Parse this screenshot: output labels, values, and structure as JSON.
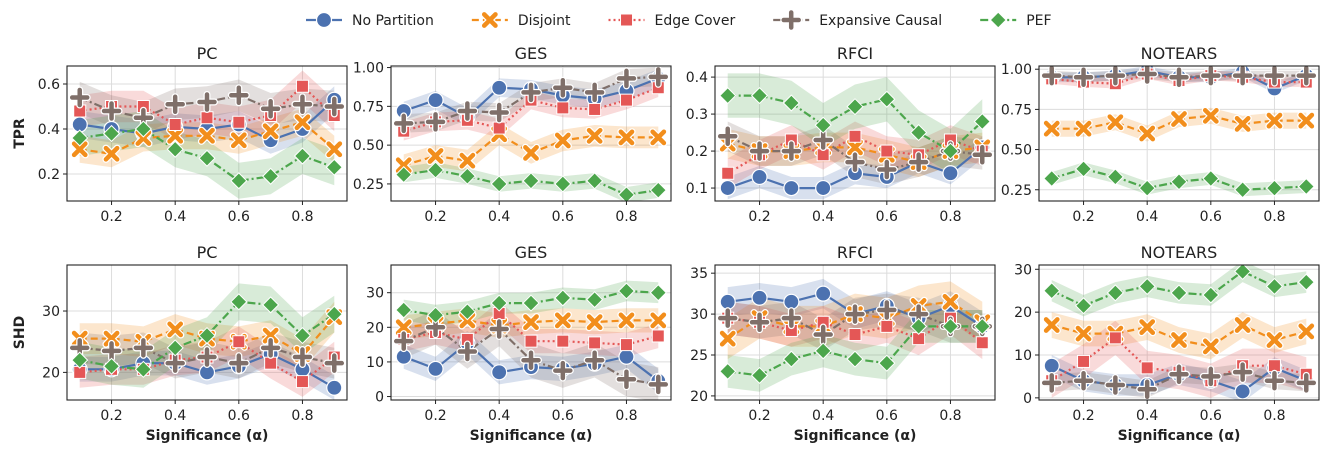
{
  "legend": [
    {
      "name": "No Partition",
      "color": "#4C72B0",
      "marker": "circle",
      "dash": ""
    },
    {
      "name": "Disjoint",
      "color": "#F28E1C",
      "marker": "x",
      "dash": "7,4"
    },
    {
      "name": "Edge Cover",
      "color": "#E45756",
      "marker": "square",
      "dash": "2,3"
    },
    {
      "name": "Expansive Causal",
      "color": "#7F6F69",
      "marker": "plus",
      "dash": "8,3,2,3"
    },
    {
      "name": "PEF",
      "color": "#4CA64C",
      "marker": "diamond",
      "dash": "8,3,2,3"
    }
  ],
  "x_label_prefix": "Significance (",
  "x_label_symbol": "α",
  "x_label_suffix": ")",
  "row_labels": [
    "TPR",
    "SHD"
  ],
  "chart_data": [
    {
      "type": "line",
      "row": 0,
      "col": 0,
      "title": "PC",
      "ylabel": "TPR",
      "xlabel": "",
      "xlim": [
        0.06,
        0.94
      ],
      "ylim": [
        0.08,
        0.68
      ],
      "yticks": [
        0.2,
        0.4,
        0.6
      ],
      "yticklabels": [
        "0.2",
        "0.4",
        "0.6"
      ],
      "xticks": [
        0.2,
        0.4,
        0.6,
        0.8
      ],
      "xticklabels": [
        "0.2",
        "0.4",
        "0.6",
        "0.8"
      ],
      "x": [
        0.1,
        0.2,
        0.3,
        0.4,
        0.5,
        0.6,
        0.7,
        0.8,
        0.9
      ],
      "series": [
        {
          "name": "No Partition",
          "values": [
            0.42,
            0.4,
            0.38,
            0.41,
            0.4,
            0.42,
            0.35,
            0.4,
            0.53
          ],
          "band": 0.06
        },
        {
          "name": "Disjoint",
          "values": [
            0.31,
            0.29,
            0.36,
            0.37,
            0.37,
            0.35,
            0.39,
            0.43,
            0.31
          ],
          "band": 0.06
        },
        {
          "name": "Edge Cover",
          "values": [
            0.48,
            0.5,
            0.5,
            0.42,
            0.45,
            0.43,
            0.46,
            0.59,
            0.46
          ],
          "band": 0.07
        },
        {
          "name": "Expansive Causal",
          "values": [
            0.54,
            0.48,
            0.45,
            0.51,
            0.52,
            0.55,
            0.49,
            0.51,
            0.5
          ],
          "band": 0.07
        },
        {
          "name": "PEF",
          "values": [
            0.36,
            0.38,
            0.4,
            0.31,
            0.27,
            0.17,
            0.19,
            0.28,
            0.23
          ],
          "band": 0.08
        }
      ]
    },
    {
      "type": "line",
      "row": 0,
      "col": 1,
      "title": "GES",
      "ylabel": "",
      "xlabel": "",
      "xlim": [
        0.06,
        0.94
      ],
      "ylim": [
        0.14,
        1.01
      ],
      "yticks": [
        0.25,
        0.5,
        0.75,
        1.0
      ],
      "yticklabels": [
        "0.25",
        "0.50",
        "0.75",
        "1.00"
      ],
      "xticks": [
        0.2,
        0.4,
        0.6,
        0.8
      ],
      "xticklabels": [
        "0.2",
        "0.4",
        "0.6",
        "0.8"
      ],
      "x": [
        0.1,
        0.2,
        0.3,
        0.4,
        0.5,
        0.6,
        0.7,
        0.8,
        0.9
      ],
      "series": [
        {
          "name": "No Partition",
          "values": [
            0.72,
            0.79,
            0.68,
            0.87,
            0.86,
            0.82,
            0.8,
            0.85,
            0.93
          ],
          "band": 0.06
        },
        {
          "name": "Disjoint",
          "values": [
            0.37,
            0.43,
            0.4,
            0.57,
            0.45,
            0.53,
            0.56,
            0.55,
            0.55
          ],
          "band": 0.07
        },
        {
          "name": "Edge Cover",
          "values": [
            0.59,
            0.65,
            0.66,
            0.61,
            0.79,
            0.74,
            0.73,
            0.79,
            0.87
          ],
          "band": 0.06
        },
        {
          "name": "Expansive Causal",
          "values": [
            0.64,
            0.65,
            0.72,
            0.71,
            0.84,
            0.87,
            0.84,
            0.93,
            0.94
          ],
          "band": 0.06
        },
        {
          "name": "PEF",
          "values": [
            0.31,
            0.34,
            0.3,
            0.25,
            0.27,
            0.25,
            0.27,
            0.18,
            0.21
          ],
          "band": 0.05
        }
      ]
    },
    {
      "type": "line",
      "row": 0,
      "col": 2,
      "title": "RFCI",
      "ylabel": "",
      "xlabel": "",
      "xlim": [
        0.06,
        0.94
      ],
      "ylim": [
        0.065,
        0.43
      ],
      "yticks": [
        0.1,
        0.2,
        0.3,
        0.4
      ],
      "yticklabels": [
        "0.1",
        "0.2",
        "0.3",
        "0.4"
      ],
      "xticks": [
        0.2,
        0.4,
        0.6,
        0.8
      ],
      "xticklabels": [
        "0.2",
        "0.4",
        "0.6",
        "0.8"
      ],
      "x": [
        0.1,
        0.2,
        0.3,
        0.4,
        0.5,
        0.6,
        0.7,
        0.8,
        0.9
      ],
      "series": [
        {
          "name": "No Partition",
          "values": [
            0.1,
            0.13,
            0.1,
            0.1,
            0.14,
            0.13,
            0.17,
            0.14,
            0.21
          ],
          "band": 0.03
        },
        {
          "name": "Disjoint",
          "values": [
            0.22,
            0.2,
            0.2,
            0.21,
            0.21,
            0.19,
            0.17,
            0.2,
            0.21
          ],
          "band": 0.04
        },
        {
          "name": "Edge Cover",
          "values": [
            0.14,
            0.19,
            0.23,
            0.19,
            0.24,
            0.2,
            0.19,
            0.23,
            0.2
          ],
          "band": 0.04
        },
        {
          "name": "Expansive Causal",
          "values": [
            0.24,
            0.2,
            0.2,
            0.23,
            0.17,
            0.15,
            0.17,
            0.2,
            0.19
          ],
          "band": 0.04
        },
        {
          "name": "PEF",
          "values": [
            0.35,
            0.35,
            0.33,
            0.27,
            0.32,
            0.34,
            0.25,
            0.2,
            0.28
          ],
          "band": 0.06
        }
      ]
    },
    {
      "type": "line",
      "row": 0,
      "col": 3,
      "title": "NOTEARS",
      "ylabel": "",
      "xlabel": "",
      "xlim": [
        0.06,
        0.94
      ],
      "ylim": [
        0.18,
        1.02
      ],
      "yticks": [
        0.25,
        0.5,
        0.75,
        1.0
      ],
      "yticklabels": [
        "0.25",
        "0.50",
        "0.75",
        "1.00"
      ],
      "xticks": [
        0.2,
        0.4,
        0.6,
        0.8
      ],
      "xticklabels": [
        "0.2",
        "0.4",
        "0.6",
        "0.8"
      ],
      "x": [
        0.1,
        0.2,
        0.3,
        0.4,
        0.5,
        0.6,
        0.7,
        0.8,
        0.9
      ],
      "series": [
        {
          "name": "No Partition",
          "values": [
            0.95,
            0.95,
            0.96,
            0.99,
            0.95,
            0.95,
            0.98,
            0.88,
            0.96
          ],
          "band": 0.03
        },
        {
          "name": "Disjoint",
          "values": [
            0.63,
            0.63,
            0.67,
            0.6,
            0.69,
            0.71,
            0.66,
            0.68,
            0.68
          ],
          "band": 0.05
        },
        {
          "name": "Edge Cover",
          "values": [
            0.94,
            0.92,
            0.91,
            0.97,
            0.93,
            0.96,
            0.95,
            0.92,
            0.92
          ],
          "band": 0.03
        },
        {
          "name": "Expansive Causal",
          "values": [
            0.96,
            0.95,
            0.96,
            0.97,
            0.95,
            0.96,
            0.96,
            0.96,
            0.96
          ],
          "band": 0.03
        },
        {
          "name": "PEF",
          "values": [
            0.32,
            0.38,
            0.33,
            0.26,
            0.3,
            0.32,
            0.25,
            0.26,
            0.27
          ],
          "band": 0.04
        }
      ]
    },
    {
      "type": "line",
      "row": 1,
      "col": 0,
      "title": "PC",
      "ylabel": "SHD",
      "xlabel": "Significance (α)",
      "xlim": [
        0.06,
        0.94
      ],
      "ylim": [
        15.5,
        37.5
      ],
      "yticks": [
        20,
        30
      ],
      "yticklabels": [
        "20",
        "30"
      ],
      "xticks": [
        0.2,
        0.4,
        0.6,
        0.8
      ],
      "xticklabels": [
        "0.2",
        "0.4",
        "0.6",
        "0.8"
      ],
      "x": [
        0.1,
        0.2,
        0.3,
        0.4,
        0.5,
        0.6,
        0.7,
        0.8,
        0.9
      ],
      "series": [
        {
          "name": "No Partition",
          "values": [
            20.5,
            20.5,
            21.5,
            21.5,
            20.0,
            21.0,
            23.0,
            20.5,
            17.5
          ],
          "band": 2.0
        },
        {
          "name": "Disjoint",
          "values": [
            25.5,
            25.5,
            25.0,
            27.0,
            25.5,
            25.0,
            26.0,
            23.0,
            29.0
          ],
          "band": 2.5
        },
        {
          "name": "Edge Cover",
          "values": [
            20.0,
            20.5,
            20.5,
            22.0,
            22.5,
            25.0,
            21.5,
            18.5,
            22.5
          ],
          "band": 2.5
        },
        {
          "name": "Expansive Causal",
          "values": [
            24.0,
            23.5,
            24.0,
            21.5,
            22.5,
            21.5,
            24.0,
            22.5,
            21.5
          ],
          "band": 2.5
        },
        {
          "name": "PEF",
          "values": [
            22.0,
            21.0,
            20.5,
            24.0,
            26.0,
            31.5,
            31.0,
            26.0,
            29.5
          ],
          "band": 3.0
        }
      ]
    },
    {
      "type": "line",
      "row": 1,
      "col": 1,
      "title": "GES",
      "ylabel": "",
      "xlabel": "Significance (α)",
      "xlim": [
        0.06,
        0.94
      ],
      "ylim": [
        -1,
        38
      ],
      "yticks": [
        0,
        10,
        20,
        30
      ],
      "yticklabels": [
        "0",
        "10",
        "20",
        "30"
      ],
      "xticks": [
        0.2,
        0.4,
        0.6,
        0.8
      ],
      "xticklabels": [
        "0.2",
        "0.4",
        "0.6",
        "0.8"
      ],
      "x": [
        0.1,
        0.2,
        0.3,
        0.4,
        0.5,
        0.6,
        0.7,
        0.8,
        0.9
      ],
      "series": [
        {
          "name": "No Partition",
          "values": [
            11.5,
            8.0,
            15.5,
            7.0,
            8.5,
            8.0,
            9.5,
            11.5,
            4.5
          ],
          "band": 3.5
        },
        {
          "name": "Disjoint",
          "values": [
            20.0,
            21.0,
            22.0,
            20.5,
            21.5,
            22.0,
            21.5,
            22.0,
            22.0
          ],
          "band": 3.5
        },
        {
          "name": "Edge Cover",
          "values": [
            16.5,
            18.5,
            16.5,
            24.0,
            16.0,
            16.0,
            15.5,
            15.0,
            17.5
          ],
          "band": 3.5
        },
        {
          "name": "Expansive Causal",
          "values": [
            16.0,
            20.0,
            13.0,
            19.5,
            10.5,
            7.5,
            10.5,
            5.0,
            3.5
          ],
          "band": 5.0
        },
        {
          "name": "PEF",
          "values": [
            25.0,
            23.5,
            24.5,
            27.0,
            27.0,
            28.5,
            28.0,
            30.5,
            30.0
          ],
          "band": 3.0
        }
      ]
    },
    {
      "type": "line",
      "row": 1,
      "col": 2,
      "title": "RFCI",
      "ylabel": "",
      "xlabel": "Significance (α)",
      "xlim": [
        0.06,
        0.94
      ],
      "ylim": [
        19.5,
        36
      ],
      "yticks": [
        20,
        25,
        30,
        35
      ],
      "yticklabels": [
        "20",
        "25",
        "30",
        "35"
      ],
      "xticks": [
        0.2,
        0.4,
        0.6,
        0.8
      ],
      "xticklabels": [
        "0.2",
        "0.4",
        "0.6",
        "0.8"
      ],
      "x": [
        0.1,
        0.2,
        0.3,
        0.4,
        0.5,
        0.6,
        0.7,
        0.8,
        0.9
      ],
      "series": [
        {
          "name": "No Partition",
          "values": [
            31.5,
            32.0,
            31.5,
            32.5,
            30.0,
            31.0,
            29.5,
            31.0,
            28.5
          ],
          "band": 1.8
        },
        {
          "name": "Disjoint",
          "values": [
            27.0,
            29.5,
            28.5,
            28.5,
            30.0,
            29.5,
            31.0,
            31.5,
            29.0
          ],
          "band": 2.5
        },
        {
          "name": "Edge Cover",
          "values": [
            29.5,
            29.0,
            28.0,
            29.0,
            27.5,
            28.5,
            27.0,
            29.5,
            26.5
          ],
          "band": 2.0
        },
        {
          "name": "Expansive Causal",
          "values": [
            29.5,
            29.0,
            29.5,
            27.5,
            30.0,
            30.5,
            30.0,
            28.5,
            28.5
          ],
          "band": 2.0
        },
        {
          "name": "PEF",
          "values": [
            23.0,
            22.5,
            24.5,
            25.5,
            24.5,
            24.0,
            28.5,
            28.5,
            28.5
          ],
          "band": 2.0
        }
      ]
    },
    {
      "type": "line",
      "row": 1,
      "col": 3,
      "title": "NOTEARS",
      "ylabel": "",
      "xlabel": "Significance (α)",
      "xlim": [
        0.06,
        0.94
      ],
      "ylim": [
        -0.5,
        31
      ],
      "yticks": [
        0,
        10,
        20,
        30
      ],
      "yticklabels": [
        "0",
        "10",
        "20",
        "30"
      ],
      "xticks": [
        0.2,
        0.4,
        0.6,
        0.8
      ],
      "xticklabels": [
        "0.2",
        "0.4",
        "0.6",
        "0.8"
      ],
      "x": [
        0.1,
        0.2,
        0.3,
        0.4,
        0.5,
        0.6,
        0.7,
        0.8,
        0.9
      ],
      "series": [
        {
          "name": "No Partition",
          "values": [
            7.5,
            4.0,
            3.0,
            3.0,
            5.5,
            4.0,
            1.5,
            7.0,
            4.0
          ],
          "band": 2.5
        },
        {
          "name": "Disjoint",
          "values": [
            17.0,
            15.0,
            15.0,
            16.5,
            13.5,
            12.0,
            17.0,
            13.5,
            15.5
          ],
          "band": 3.0
        },
        {
          "name": "Edge Cover",
          "values": [
            4.0,
            8.5,
            14.0,
            7.0,
            6.0,
            4.0,
            7.5,
            7.5,
            5.5
          ],
          "band": 4.0
        },
        {
          "name": "Expansive Causal",
          "values": [
            3.5,
            4.0,
            3.0,
            2.0,
            5.5,
            5.0,
            6.0,
            4.0,
            3.5
          ],
          "band": 2.0
        },
        {
          "name": "PEF",
          "values": [
            25.0,
            21.5,
            24.5,
            26.0,
            24.5,
            24.0,
            29.5,
            26.0,
            27.0
          ],
          "band": 2.5
        }
      ]
    }
  ]
}
